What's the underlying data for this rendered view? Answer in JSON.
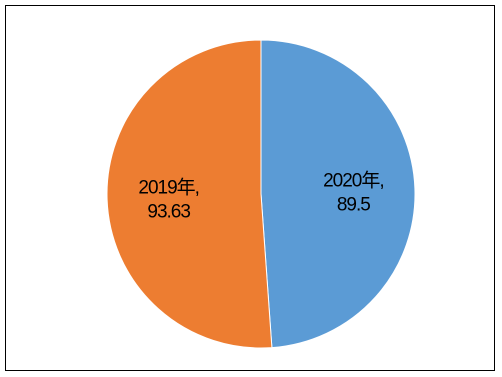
{
  "chart_data": {
    "type": "pie",
    "title": "",
    "slices": [
      {
        "label": "2020年",
        "value": 89.5,
        "display_value": "89.5",
        "color": "#5b9bd5"
      },
      {
        "label": "2019年",
        "value": 93.63,
        "display_value": "93.63",
        "color": "#ed7d31"
      }
    ],
    "start_angle_deg": 0,
    "direction": "clockwise",
    "legend": "none",
    "data_labels": "category-and-value-inside"
  }
}
